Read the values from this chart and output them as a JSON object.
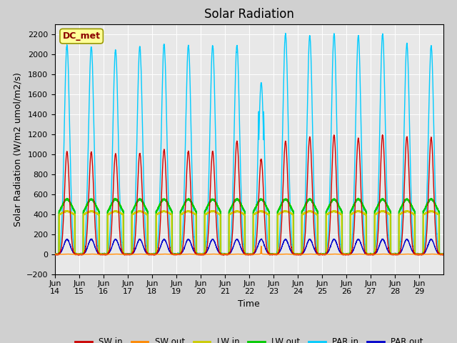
{
  "title": "Solar Radiation",
  "ylabel": "Solar Radiation (W/m2 umol/m2/s)",
  "xlabel": "Time",
  "ylim": [
    -200,
    2300
  ],
  "yticks": [
    -200,
    0,
    200,
    400,
    600,
    800,
    1000,
    1200,
    1400,
    1600,
    1800,
    2000,
    2200
  ],
  "fig_bg": "#d0d0d0",
  "plot_bg": "#e8e8e8",
  "grid_color": "white",
  "series": {
    "SW_in": {
      "color": "#cc0000",
      "label": "SW in",
      "lw": 1.0
    },
    "SW_out": {
      "color": "#ff8800",
      "label": "SW out",
      "lw": 1.0
    },
    "LW_in": {
      "color": "#cccc00",
      "label": "LW in",
      "lw": 1.5
    },
    "LW_out": {
      "color": "#00cc00",
      "label": "LW out",
      "lw": 1.5
    },
    "PAR_in": {
      "color": "#00ccff",
      "label": "PAR in",
      "lw": 1.0
    },
    "PAR_out": {
      "color": "#0000cc",
      "label": "PAR out",
      "lw": 1.0
    }
  },
  "annotation": {
    "text": "DC_met",
    "fontsize": 9,
    "color": "#8b0000",
    "bbox_facecolor": "#ffff99",
    "bbox_edgecolor": "#999900"
  },
  "num_days": 16,
  "x_tick_labels": [
    "Jun 14",
    "Jun 15",
    "Jun 16",
    "Jun 17",
    "Jun 18",
    "Jun 19",
    "Jun 20",
    "Jun 21",
    "Jun 22",
    "Jun 23",
    "Jun 24",
    "Jun 25",
    "Jun 26",
    "Jun 27",
    "Jun 28",
    "Jun 29"
  ],
  "title_fontsize": 12,
  "tick_fontsize": 8,
  "label_fontsize": 9
}
